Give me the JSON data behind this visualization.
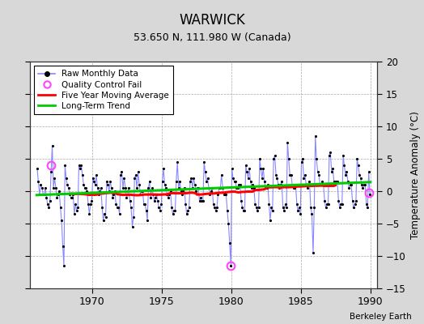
{
  "title": "WARWICK",
  "subtitle": "53.650 N, 111.980 W (Canada)",
  "ylabel": "Temperature Anomaly (°C)",
  "credit": "Berkeley Earth",
  "xlim": [
    1965.5,
    1990.5
  ],
  "ylim": [
    -15,
    20
  ],
  "yticks": [
    -15,
    -10,
    -5,
    0,
    5,
    10,
    15,
    20
  ],
  "xticks": [
    1970,
    1975,
    1980,
    1985,
    1990
  ],
  "bg_color": "#d8d8d8",
  "plot_bg_color": "#ffffff",
  "raw_line_color": "#8888ff",
  "raw_dot_color": "#000000",
  "ma_color": "#ff0000",
  "trend_color": "#00cc00",
  "qc_color": "#ff44ff",
  "raw_data": [
    [
      1966.04,
      3.5
    ],
    [
      1966.12,
      1.5
    ],
    [
      1966.21,
      -0.5
    ],
    [
      1966.29,
      1.0
    ],
    [
      1966.38,
      0.5
    ],
    [
      1966.46,
      -0.5
    ],
    [
      1966.54,
      -0.5
    ],
    [
      1966.62,
      0.5
    ],
    [
      1966.71,
      -1.0
    ],
    [
      1966.79,
      -2.0
    ],
    [
      1966.88,
      -2.5
    ],
    [
      1966.96,
      -1.5
    ],
    [
      1967.04,
      3.0
    ],
    [
      1967.12,
      7.0
    ],
    [
      1967.21,
      0.5
    ],
    [
      1967.29,
      2.0
    ],
    [
      1967.38,
      0.5
    ],
    [
      1967.46,
      -1.0
    ],
    [
      1967.54,
      -0.5
    ],
    [
      1967.62,
      0.0
    ],
    [
      1967.71,
      -2.5
    ],
    [
      1967.79,
      -4.5
    ],
    [
      1967.88,
      -8.5
    ],
    [
      1967.96,
      -11.5
    ],
    [
      1968.04,
      4.0
    ],
    [
      1968.12,
      2.0
    ],
    [
      1968.21,
      1.0
    ],
    [
      1968.29,
      0.5
    ],
    [
      1968.38,
      -0.5
    ],
    [
      1968.46,
      -1.0
    ],
    [
      1968.54,
      -1.0
    ],
    [
      1968.62,
      -0.5
    ],
    [
      1968.71,
      -3.5
    ],
    [
      1968.79,
      -2.0
    ],
    [
      1968.88,
      -3.0
    ],
    [
      1968.96,
      -2.5
    ],
    [
      1969.04,
      4.0
    ],
    [
      1969.12,
      3.5
    ],
    [
      1969.21,
      4.0
    ],
    [
      1969.29,
      2.5
    ],
    [
      1969.38,
      1.0
    ],
    [
      1969.46,
      0.5
    ],
    [
      1969.54,
      0.5
    ],
    [
      1969.62,
      0.0
    ],
    [
      1969.71,
      -2.0
    ],
    [
      1969.79,
      -3.5
    ],
    [
      1969.88,
      -2.0
    ],
    [
      1969.96,
      -1.5
    ],
    [
      1970.04,
      2.0
    ],
    [
      1970.12,
      1.5
    ],
    [
      1970.21,
      1.0
    ],
    [
      1970.29,
      2.5
    ],
    [
      1970.38,
      0.5
    ],
    [
      1970.46,
      -0.5
    ],
    [
      1970.54,
      0.0
    ],
    [
      1970.62,
      0.5
    ],
    [
      1970.71,
      -2.5
    ],
    [
      1970.79,
      -4.5
    ],
    [
      1970.88,
      -3.5
    ],
    [
      1970.96,
      -4.0
    ],
    [
      1971.04,
      1.5
    ],
    [
      1971.12,
      1.0
    ],
    [
      1971.21,
      0.0
    ],
    [
      1971.29,
      1.5
    ],
    [
      1971.38,
      0.5
    ],
    [
      1971.46,
      -1.0
    ],
    [
      1971.54,
      -0.5
    ],
    [
      1971.62,
      0.0
    ],
    [
      1971.71,
      -2.0
    ],
    [
      1971.79,
      -2.5
    ],
    [
      1971.88,
      -2.5
    ],
    [
      1971.96,
      -3.5
    ],
    [
      1972.04,
      2.5
    ],
    [
      1972.12,
      3.0
    ],
    [
      1972.21,
      0.5
    ],
    [
      1972.29,
      2.0
    ],
    [
      1972.38,
      0.5
    ],
    [
      1972.46,
      -1.0
    ],
    [
      1972.54,
      -0.5
    ],
    [
      1972.62,
      0.5
    ],
    [
      1972.71,
      -1.5
    ],
    [
      1972.79,
      -2.5
    ],
    [
      1972.88,
      -5.5
    ],
    [
      1972.96,
      -4.0
    ],
    [
      1973.04,
      2.0
    ],
    [
      1973.12,
      2.5
    ],
    [
      1973.21,
      0.5
    ],
    [
      1973.29,
      3.0
    ],
    [
      1973.38,
      1.0
    ],
    [
      1973.46,
      -0.5
    ],
    [
      1973.54,
      0.0
    ],
    [
      1973.62,
      0.0
    ],
    [
      1973.71,
      -2.0
    ],
    [
      1973.79,
      -2.0
    ],
    [
      1973.88,
      -3.0
    ],
    [
      1973.96,
      -4.5
    ],
    [
      1974.04,
      0.5
    ],
    [
      1974.12,
      1.5
    ],
    [
      1974.21,
      -1.0
    ],
    [
      1974.29,
      0.5
    ],
    [
      1974.38,
      -0.5
    ],
    [
      1974.46,
      -1.5
    ],
    [
      1974.54,
      -1.0
    ],
    [
      1974.62,
      -0.5
    ],
    [
      1974.71,
      -1.5
    ],
    [
      1974.79,
      -2.5
    ],
    [
      1974.88,
      -3.0
    ],
    [
      1974.96,
      -2.0
    ],
    [
      1975.04,
      1.5
    ],
    [
      1975.12,
      3.5
    ],
    [
      1975.21,
      1.0
    ],
    [
      1975.29,
      0.5
    ],
    [
      1975.38,
      -0.5
    ],
    [
      1975.46,
      -1.0
    ],
    [
      1975.54,
      -0.5
    ],
    [
      1975.62,
      0.0
    ],
    [
      1975.71,
      -2.5
    ],
    [
      1975.79,
      -3.5
    ],
    [
      1975.88,
      -3.0
    ],
    [
      1975.96,
      -3.0
    ],
    [
      1976.04,
      1.5
    ],
    [
      1976.12,
      4.5
    ],
    [
      1976.21,
      0.5
    ],
    [
      1976.29,
      1.5
    ],
    [
      1976.38,
      0.0
    ],
    [
      1976.46,
      -0.5
    ],
    [
      1976.54,
      0.0
    ],
    [
      1976.62,
      0.5
    ],
    [
      1976.71,
      -2.0
    ],
    [
      1976.79,
      -3.5
    ],
    [
      1976.88,
      -3.0
    ],
    [
      1976.96,
      -2.5
    ],
    [
      1977.04,
      1.5
    ],
    [
      1977.12,
      2.0
    ],
    [
      1977.21,
      0.5
    ],
    [
      1977.29,
      2.0
    ],
    [
      1977.38,
      1.0
    ],
    [
      1977.46,
      0.0
    ],
    [
      1977.54,
      0.5
    ],
    [
      1977.62,
      0.5
    ],
    [
      1977.71,
      -1.5
    ],
    [
      1977.79,
      -1.0
    ],
    [
      1977.88,
      -1.5
    ],
    [
      1977.96,
      -1.5
    ],
    [
      1978.04,
      4.5
    ],
    [
      1978.12,
      3.0
    ],
    [
      1978.21,
      1.5
    ],
    [
      1978.29,
      2.0
    ],
    [
      1978.38,
      0.5
    ],
    [
      1978.46,
      -0.5
    ],
    [
      1978.54,
      0.0
    ],
    [
      1978.62,
      0.5
    ],
    [
      1978.71,
      -2.0
    ],
    [
      1978.79,
      -2.5
    ],
    [
      1978.88,
      -3.0
    ],
    [
      1978.96,
      -2.5
    ],
    [
      1979.04,
      -0.5
    ],
    [
      1979.12,
      0.5
    ],
    [
      1979.21,
      0.5
    ],
    [
      1979.29,
      2.5
    ],
    [
      1979.38,
      0.5
    ],
    [
      1979.46,
      -0.5
    ],
    [
      1979.54,
      -0.5
    ],
    [
      1979.62,
      -0.5
    ],
    [
      1979.71,
      -3.0
    ],
    [
      1979.79,
      -5.0
    ],
    [
      1979.88,
      -8.0
    ],
    [
      1979.96,
      -11.5
    ],
    [
      1980.04,
      3.5
    ],
    [
      1980.12,
      2.0
    ],
    [
      1980.21,
      1.5
    ],
    [
      1980.29,
      1.5
    ],
    [
      1980.38,
      0.5
    ],
    [
      1980.46,
      0.5
    ],
    [
      1980.54,
      1.0
    ],
    [
      1980.62,
      1.0
    ],
    [
      1980.71,
      -1.5
    ],
    [
      1980.79,
      -2.5
    ],
    [
      1980.88,
      -3.0
    ],
    [
      1980.96,
      -3.0
    ],
    [
      1981.04,
      4.0
    ],
    [
      1981.12,
      3.0
    ],
    [
      1981.21,
      2.0
    ],
    [
      1981.29,
      3.5
    ],
    [
      1981.38,
      1.5
    ],
    [
      1981.46,
      0.5
    ],
    [
      1981.54,
      1.0
    ],
    [
      1981.62,
      0.5
    ],
    [
      1981.71,
      -2.0
    ],
    [
      1981.79,
      -2.5
    ],
    [
      1981.88,
      -3.0
    ],
    [
      1981.96,
      -2.5
    ],
    [
      1982.04,
      5.0
    ],
    [
      1982.12,
      3.5
    ],
    [
      1982.21,
      2.0
    ],
    [
      1982.29,
      3.5
    ],
    [
      1982.38,
      1.5
    ],
    [
      1982.46,
      0.5
    ],
    [
      1982.54,
      0.5
    ],
    [
      1982.62,
      1.0
    ],
    [
      1982.71,
      -2.0
    ],
    [
      1982.79,
      -4.5
    ],
    [
      1982.88,
      -2.5
    ],
    [
      1982.96,
      -3.0
    ],
    [
      1983.04,
      5.0
    ],
    [
      1983.12,
      5.5
    ],
    [
      1983.21,
      2.5
    ],
    [
      1983.29,
      2.0
    ],
    [
      1983.38,
      1.0
    ],
    [
      1983.46,
      0.5
    ],
    [
      1983.54,
      1.0
    ],
    [
      1983.62,
      1.5
    ],
    [
      1983.71,
      -2.5
    ],
    [
      1983.79,
      -3.0
    ],
    [
      1983.88,
      -2.0
    ],
    [
      1983.96,
      -2.5
    ],
    [
      1984.04,
      7.5
    ],
    [
      1984.12,
      5.0
    ],
    [
      1984.21,
      2.5
    ],
    [
      1984.29,
      2.5
    ],
    [
      1984.38,
      1.0
    ],
    [
      1984.46,
      0.5
    ],
    [
      1984.54,
      0.5
    ],
    [
      1984.62,
      1.0
    ],
    [
      1984.71,
      -2.0
    ],
    [
      1984.79,
      -3.0
    ],
    [
      1984.88,
      -2.5
    ],
    [
      1984.96,
      -3.5
    ],
    [
      1985.04,
      4.5
    ],
    [
      1985.12,
      5.0
    ],
    [
      1985.21,
      2.0
    ],
    [
      1985.29,
      2.5
    ],
    [
      1985.38,
      1.0
    ],
    [
      1985.46,
      0.5
    ],
    [
      1985.54,
      1.0
    ],
    [
      1985.62,
      1.5
    ],
    [
      1985.71,
      -2.5
    ],
    [
      1985.79,
      -3.5
    ],
    [
      1985.88,
      -9.5
    ],
    [
      1985.96,
      -2.5
    ],
    [
      1986.04,
      8.5
    ],
    [
      1986.12,
      5.0
    ],
    [
      1986.21,
      3.0
    ],
    [
      1986.29,
      2.5
    ],
    [
      1986.38,
      1.0
    ],
    [
      1986.46,
      1.0
    ],
    [
      1986.54,
      1.5
    ],
    [
      1986.62,
      1.0
    ],
    [
      1986.71,
      -1.5
    ],
    [
      1986.79,
      -2.5
    ],
    [
      1986.88,
      -2.0
    ],
    [
      1986.96,
      -2.0
    ],
    [
      1987.04,
      5.5
    ],
    [
      1987.12,
      6.0
    ],
    [
      1987.21,
      3.0
    ],
    [
      1987.29,
      3.5
    ],
    [
      1987.38,
      1.5
    ],
    [
      1987.46,
      1.0
    ],
    [
      1987.54,
      1.5
    ],
    [
      1987.62,
      1.5
    ],
    [
      1987.71,
      -1.5
    ],
    [
      1987.79,
      -2.5
    ],
    [
      1987.88,
      -2.0
    ],
    [
      1987.96,
      -2.0
    ],
    [
      1988.04,
      5.5
    ],
    [
      1988.12,
      4.0
    ],
    [
      1988.21,
      2.5
    ],
    [
      1988.29,
      3.0
    ],
    [
      1988.38,
      1.5
    ],
    [
      1988.46,
      0.5
    ],
    [
      1988.54,
      1.0
    ],
    [
      1988.62,
      1.0
    ],
    [
      1988.71,
      -1.5
    ],
    [
      1988.79,
      -2.5
    ],
    [
      1988.88,
      -2.0
    ],
    [
      1988.96,
      -1.5
    ],
    [
      1989.04,
      5.0
    ],
    [
      1989.12,
      4.0
    ],
    [
      1989.21,
      2.5
    ],
    [
      1989.29,
      2.0
    ],
    [
      1989.38,
      1.0
    ],
    [
      1989.46,
      0.5
    ],
    [
      1989.54,
      1.0
    ],
    [
      1989.62,
      1.0
    ],
    [
      1989.71,
      -2.0
    ],
    [
      1989.79,
      -2.5
    ],
    [
      1989.88,
      3.0
    ],
    [
      1989.96,
      -0.5
    ]
  ],
  "qc_fail_points": [
    [
      1967.04,
      4.0
    ],
    [
      1979.96,
      -11.5
    ],
    [
      1989.88,
      -0.2
    ]
  ],
  "trend_line": [
    [
      1966.0,
      -0.6
    ],
    [
      1990.0,
      1.4
    ]
  ]
}
